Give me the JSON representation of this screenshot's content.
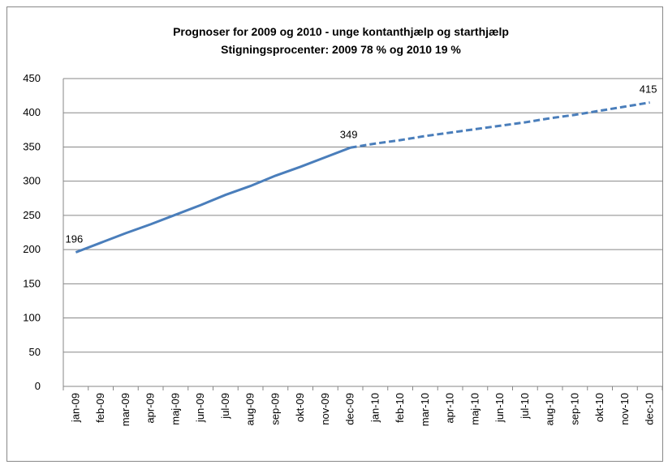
{
  "chart_data": {
    "type": "line",
    "title": "Prognoser for 2009 og 2010 - unge kontanthjælp og starthjælp",
    "subtitle": "Stigningsprocenter: 2009 78 % og  2010 19 %",
    "categories": [
      "jan-09",
      "feb-09",
      "mar-09",
      "apr-09",
      "maj-09",
      "jun-09",
      "jul-09",
      "aug-09",
      "sep-09",
      "okt-09",
      "nov-09",
      "dec-09",
      "jan-10",
      "feb-10",
      "mar-10",
      "apr-10",
      "maj-10",
      "jun-10",
      "jul-10",
      "aug-10",
      "sep-10",
      "okt-10",
      "nov-10",
      "dec-10"
    ],
    "series": [
      {
        "color": "#4a7ebb",
        "dashed": false,
        "values": [
          196,
          210,
          224,
          237,
          251,
          265,
          280,
          293,
          308,
          321,
          335,
          349,
          null,
          null,
          null,
          null,
          null,
          null,
          null,
          null,
          null,
          null,
          null,
          null
        ]
      },
      {
        "color": "#4a7ebb",
        "dashed": true,
        "values": [
          null,
          null,
          null,
          null,
          null,
          null,
          null,
          null,
          null,
          null,
          null,
          349,
          355,
          360,
          366,
          371,
          376,
          381,
          386,
          392,
          397,
          403,
          409,
          415
        ]
      }
    ],
    "data_labels": [
      {
        "series": 0,
        "index": 0
      },
      {
        "series": 0,
        "index": 11
      },
      {
        "series": 1,
        "index": 23
      }
    ],
    "ylim": [
      0,
      450
    ],
    "yticks": [
      0,
      50,
      100,
      150,
      200,
      250,
      300,
      350,
      400,
      450
    ],
    "grid": true
  }
}
